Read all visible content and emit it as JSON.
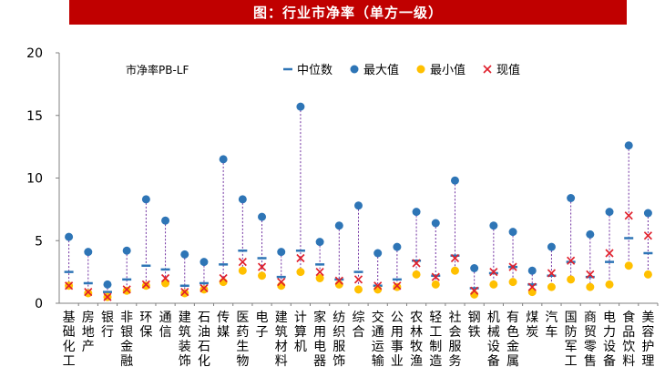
{
  "chart_data": {
    "type": "scatter",
    "title": "图：行业市净率（单方一级）",
    "subtitle": "市净率PB-LF",
    "ylim": [
      0,
      20
    ],
    "yticks": [
      0,
      5,
      10,
      15,
      20
    ],
    "legend": {
      "placement": "top",
      "entries": [
        {
          "key": "median",
          "label": "中位数",
          "color": "#2e75b6",
          "marker": "dash"
        },
        {
          "key": "max",
          "label": "最大值",
          "color": "#2e75b6",
          "marker": "circle"
        },
        {
          "key": "min",
          "label": "最小值",
          "color": "#ffc000",
          "marker": "circle"
        },
        {
          "key": "current",
          "label": "现值",
          "color": "#e0202c",
          "marker": "cross"
        }
      ]
    },
    "categories": [
      "基础化工",
      "房地产",
      "银行",
      "非银金融",
      "环保",
      "通信",
      "建筑装饰",
      "石油石化",
      "传媒",
      "医药生物",
      "电子",
      "建筑材料",
      "计算机",
      "家用电器",
      "纺织服饰",
      "综合",
      "交通运输",
      "公用事业",
      "农林牧渔",
      "轻工制造",
      "社会服务",
      "钢铁",
      "机械设备",
      "有色金属",
      "煤炭",
      "汽车",
      "国防军工",
      "商贸零售",
      "电力设备",
      "食品饮料",
      "美容护理"
    ],
    "series": [
      {
        "name": "中位数",
        "key": "median",
        "values": [
          2.5,
          1.6,
          0.9,
          1.9,
          3.0,
          2.7,
          1.4,
          1.6,
          3.1,
          4.2,
          3.6,
          2.1,
          4.2,
          3.1,
          1.9,
          2.5,
          1.4,
          1.9,
          3.4,
          2.2,
          3.8,
          1.2,
          2.4,
          2.9,
          1.5,
          2.2,
          3.3,
          2.1,
          3.3,
          5.2,
          4.0
        ]
      },
      {
        "name": "最大值",
        "key": "max",
        "values": [
          5.3,
          4.1,
          1.5,
          4.2,
          8.3,
          6.6,
          3.9,
          3.3,
          11.5,
          8.3,
          6.9,
          4.1,
          15.7,
          4.9,
          6.2,
          7.8,
          4.0,
          4.5,
          7.3,
          6.4,
          9.8,
          2.8,
          6.2,
          5.7,
          2.6,
          4.5,
          8.4,
          5.5,
          7.3,
          12.6,
          7.2
        ]
      },
      {
        "name": "最小值",
        "key": "min",
        "values": [
          1.4,
          0.8,
          0.5,
          1.0,
          1.4,
          1.6,
          0.8,
          1.1,
          1.7,
          2.6,
          2.2,
          1.4,
          2.5,
          2.0,
          1.5,
          1.1,
          1.1,
          1.3,
          2.3,
          1.5,
          2.6,
          0.7,
          1.5,
          1.7,
          0.9,
          1.3,
          1.9,
          1.3,
          1.5,
          3.0,
          2.3
        ]
      },
      {
        "name": "现值",
        "key": "current",
        "values": [
          1.4,
          0.9,
          0.5,
          1.1,
          1.5,
          2.0,
          0.9,
          1.2,
          2.0,
          3.3,
          2.9,
          1.7,
          3.6,
          2.5,
          1.8,
          1.9,
          1.4,
          1.4,
          3.2,
          2.1,
          3.6,
          1.0,
          2.5,
          2.9,
          1.3,
          2.4,
          3.4,
          2.3,
          4.0,
          7.0,
          5.4
        ]
      }
    ]
  }
}
